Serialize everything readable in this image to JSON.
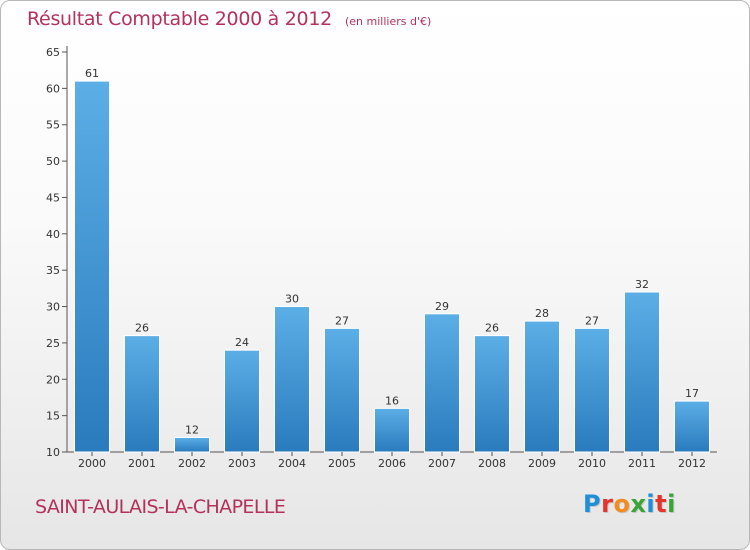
{
  "header": {
    "title": "Résultat Comptable 2000 à 2012",
    "subtitle": "(en milliers d'€)"
  },
  "footer": {
    "commune": "SAINT-AULAIS-LA-CHAPELLE",
    "logo": "Proxiti",
    "logo_colors": [
      "#1f8fd6",
      "#e5352b",
      "#f28c1f",
      "#3aa537",
      "#1f8fd6",
      "#e5352b",
      "#3aa537"
    ]
  },
  "chart_data": {
    "type": "bar",
    "categories": [
      "2000",
      "2001",
      "2002",
      "2003",
      "2004",
      "2005",
      "2006",
      "2007",
      "2008",
      "2009",
      "2010",
      "2011",
      "2012"
    ],
    "values": [
      61,
      26,
      12,
      24,
      30,
      27,
      16,
      29,
      26,
      28,
      27,
      32,
      17
    ],
    "ylim": [
      10,
      65
    ],
    "yticks": [
      10,
      15,
      20,
      25,
      30,
      35,
      40,
      45,
      50,
      55,
      60,
      65
    ],
    "grid": false,
    "legend": "none",
    "bar_color_top": "#5caee6",
    "bar_color_bottom": "#2a7bbd",
    "axis_color": "#555555",
    "label_color": "#333333"
  }
}
